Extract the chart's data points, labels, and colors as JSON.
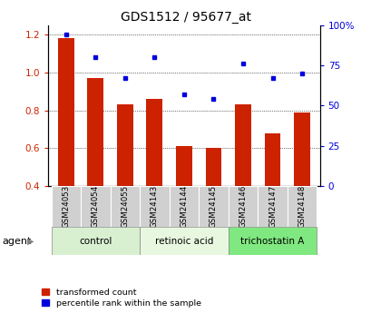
{
  "title": "GDS1512 / 95677_at",
  "samples": [
    "GSM24053",
    "GSM24054",
    "GSM24055",
    "GSM24143",
    "GSM24144",
    "GSM24145",
    "GSM24146",
    "GSM24147",
    "GSM24148"
  ],
  "transformed_count": [
    1.18,
    0.97,
    0.83,
    0.86,
    0.61,
    0.6,
    0.83,
    0.68,
    0.79
  ],
  "percentile_rank": [
    0.94,
    0.8,
    0.67,
    0.8,
    0.57,
    0.54,
    0.76,
    0.67,
    0.7
  ],
  "ylim_left": [
    0.4,
    1.25
  ],
  "ylim_right": [
    0,
    100
  ],
  "yticks_left": [
    0.4,
    0.6,
    0.8,
    1.0,
    1.2
  ],
  "yticks_right": [
    0,
    25,
    50,
    75,
    100
  ],
  "ytick_labels_right": [
    "0",
    "25",
    "50",
    "75",
    "100%"
  ],
  "groups": [
    {
      "label": "control",
      "indices": [
        0,
        1,
        2
      ],
      "color": "#d8f0d0"
    },
    {
      "label": "retinoic acid",
      "indices": [
        3,
        4,
        5
      ],
      "color": "#e8f8e0"
    },
    {
      "label": "trichostatin A",
      "indices": [
        6,
        7,
        8
      ],
      "color": "#80e880"
    }
  ],
  "bar_color": "#cc2200",
  "dot_color": "#0000dd",
  "bar_width": 0.55,
  "agent_label": "agent",
  "legend_transformed": "transformed count",
  "legend_percentile": "percentile rank within the sample",
  "background_color": "#ffffff",
  "tick_label_color_left": "#cc2200",
  "tick_label_color_right": "#0000dd"
}
